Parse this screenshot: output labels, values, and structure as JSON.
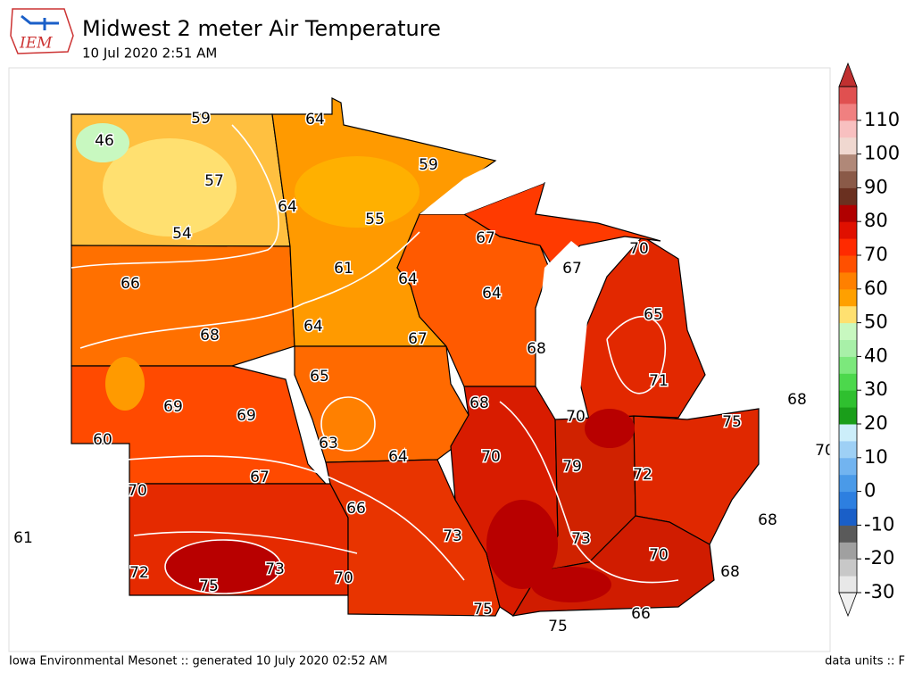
{
  "header": {
    "logo_text": "IEM",
    "title": "Midwest 2 meter Air Temperature",
    "subtitle": "10 Jul 2020 2:51 AM"
  },
  "footer": {
    "left": "Iowa Environmental Mesonet :: generated 10 July 2020 02:52 AM",
    "right": "data units :: F"
  },
  "colorbar": {
    "lim": [
      -30,
      120
    ],
    "step": 5,
    "ticks": [
      -30,
      -20,
      -10,
      0,
      10,
      20,
      30,
      40,
      50,
      60,
      70,
      80,
      90,
      100,
      110
    ],
    "colors": [
      "#e8e8e8",
      "#c8c8c8",
      "#a0a0a0",
      "#5a5a5a",
      "#1a5fc8",
      "#2d7fe0",
      "#4a9ae8",
      "#72b4f0",
      "#9ed0f5",
      "#cceefa",
      "#1a9e1a",
      "#2fc02f",
      "#4cd84c",
      "#7ce87c",
      "#a8f0a8",
      "#c8f8c0",
      "#ffe070",
      "#ffa000",
      "#ff8000",
      "#ff5000",
      "#ff2a00",
      "#e01000",
      "#b00000",
      "#6a3020",
      "#8a5a48",
      "#b08878",
      "#f0d8d0",
      "#f8c0c0",
      "#f08080",
      "#e05050"
    ],
    "under_color": "#f0f0f0",
    "over_color": "#c03030"
  },
  "contour_labels": [
    59,
    64,
    46,
    57,
    64,
    59,
    55,
    54,
    61,
    64,
    67,
    70,
    67,
    66,
    64,
    65,
    64,
    68,
    67,
    68,
    65,
    71,
    69,
    69,
    68,
    68,
    70,
    75,
    60,
    63,
    64,
    70,
    79,
    72,
    70,
    67,
    66,
    68,
    61,
    73,
    73,
    70,
    72,
    73,
    70,
    68,
    75,
    75,
    66,
    75,
    70
  ]
}
